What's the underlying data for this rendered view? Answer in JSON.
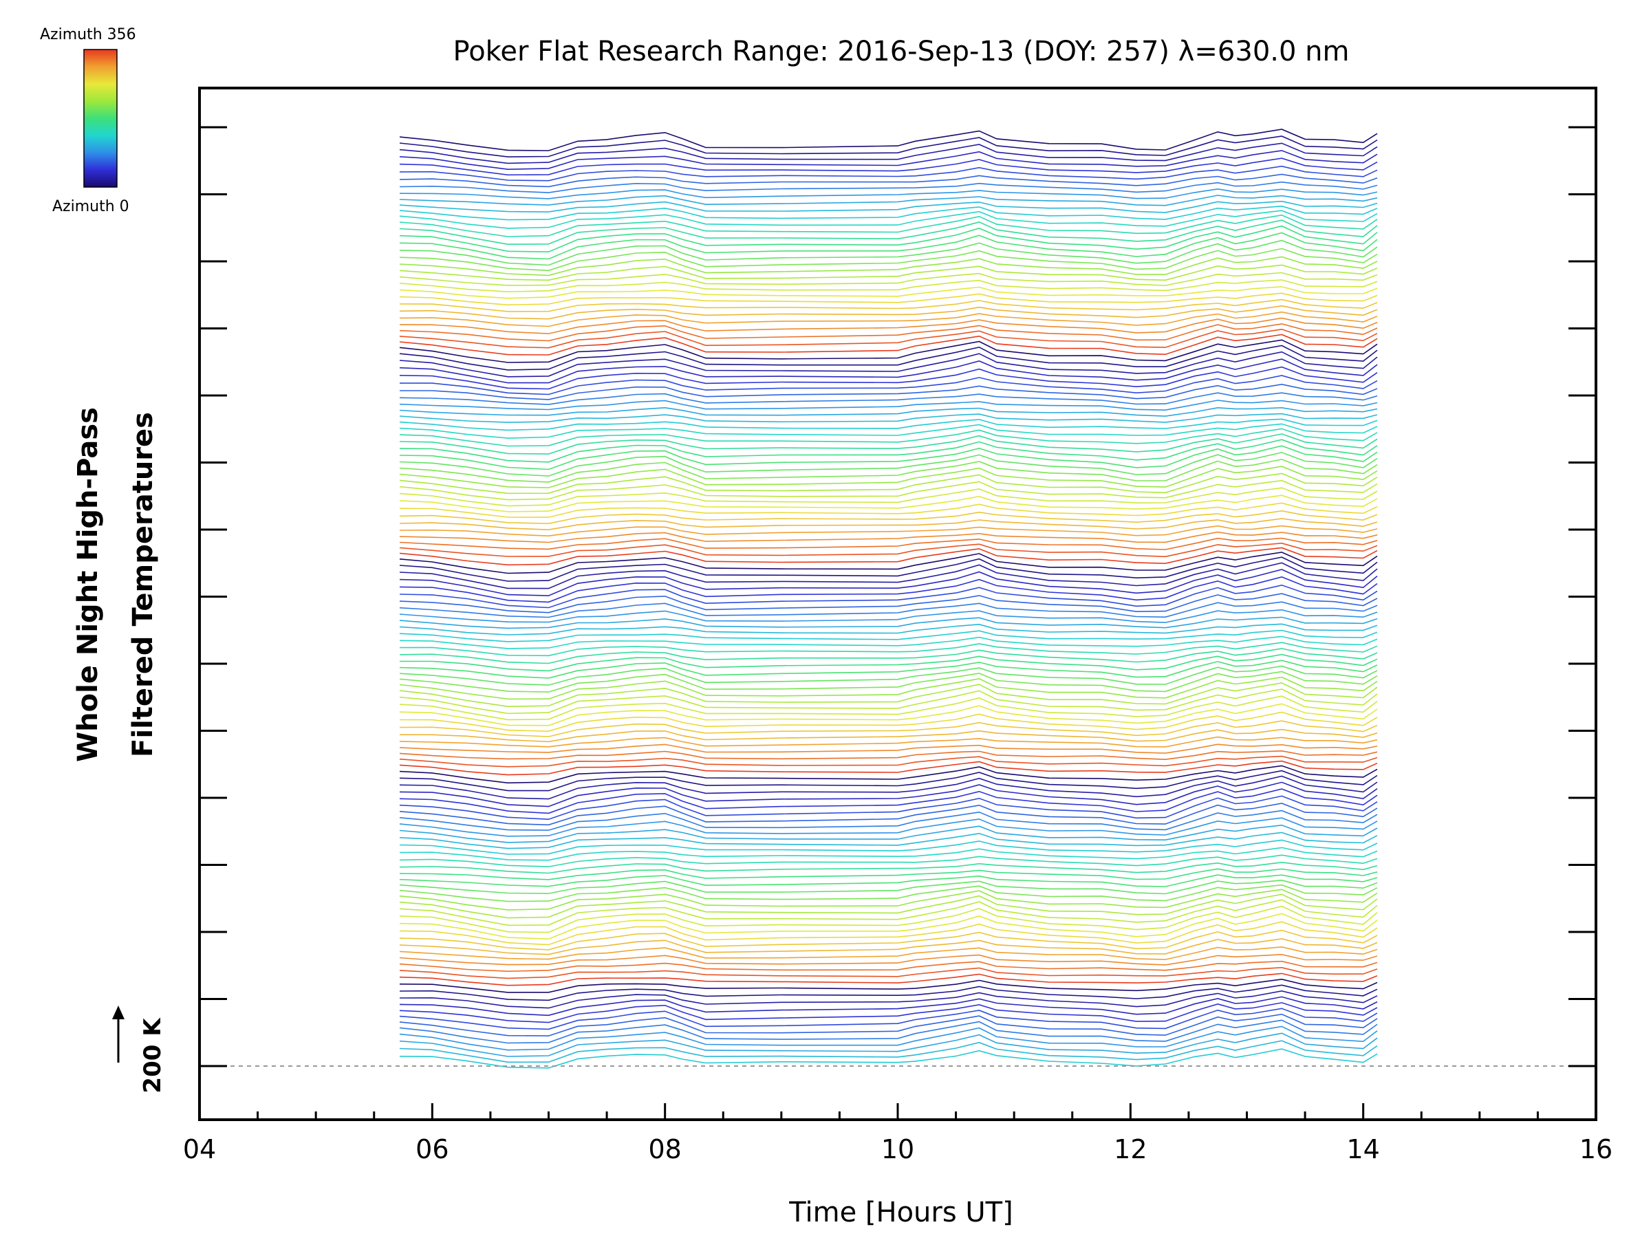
{
  "chart_data": {
    "type": "line",
    "title": "Poker Flat Research Range: 2016-Sep-13 (DOY: 257) λ=630.0 nm",
    "xlabel": "Time [Hours UT]",
    "ylabel_lines": [
      "Whole Night High-Pass",
      "Filtered Temperatures"
    ],
    "xlim": [
      4,
      16
    ],
    "x_ticks": [
      "04",
      "06",
      "08",
      "10",
      "12",
      "14",
      "16"
    ],
    "scale_bar_label": "200 K",
    "colorbar": {
      "top_label": "Azimuth 356",
      "bottom_label": "Azimuth 0",
      "colormap": [
        "#1a0a6e",
        "#2f2fd8",
        "#2f8fe8",
        "#21d6cf",
        "#3de07a",
        "#9ee83c",
        "#e8e83a",
        "#f0a030",
        "#e83a1e"
      ]
    },
    "series_count": 140,
    "x": [
      5.72,
      6.0,
      6.3,
      6.65,
      7.0,
      7.25,
      7.5,
      7.75,
      8.0,
      8.15,
      8.35,
      9.0,
      10.0,
      10.15,
      10.5,
      10.7,
      10.85,
      11.3,
      11.75,
      12.05,
      12.3,
      12.55,
      12.75,
      12.9,
      13.05,
      13.3,
      13.5,
      13.75,
      14.0,
      14.12
    ],
    "base_shape": [
      0.6,
      0.3,
      -0.5,
      -1.5,
      -1.6,
      0.0,
      0.4,
      0.9,
      1.1,
      0.2,
      -0.9,
      -0.8,
      -0.7,
      -0.2,
      0.8,
      1.6,
      0.5,
      -0.4,
      -0.6,
      -1.3,
      -1.2,
      0.3,
      1.3,
      0.6,
      1.0,
      1.9,
      0.4,
      0.1,
      -0.4,
      1.1
    ],
    "series": [
      {
        "name": "",
        "values": [
          4.1,
          3.9,
          3.3,
          2.7,
          2.6,
          3.4,
          3.6,
          4.0,
          4.3,
          3.8,
          3.2,
          3.3,
          3.3,
          3.6,
          4.0,
          4.4,
          3.9,
          3.5,
          3.4,
          3.0,
          3.0,
          3.6,
          4.3,
          3.9,
          4.1,
          4.4,
          3.8,
          3.6,
          3.4,
          4.6
        ]
      }
    ],
    "grid": false
  }
}
